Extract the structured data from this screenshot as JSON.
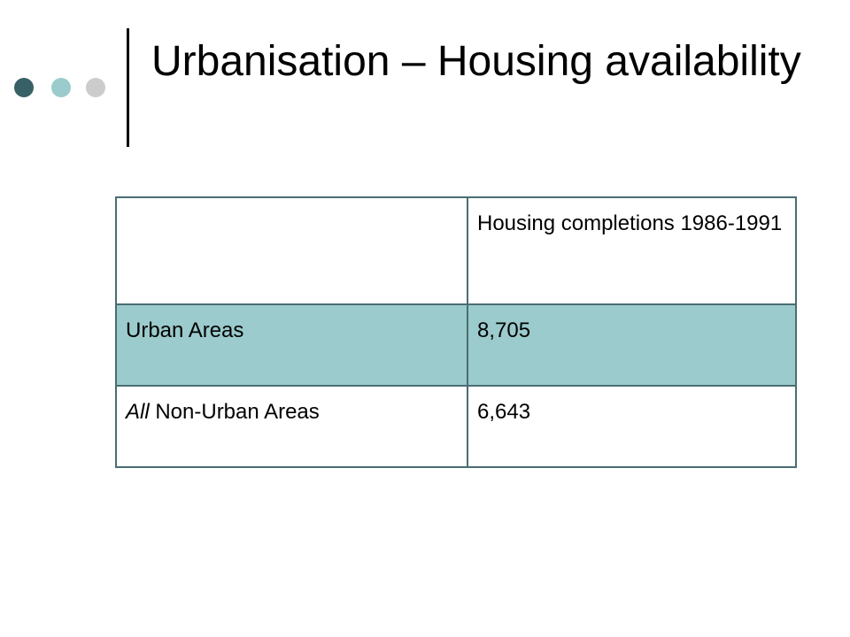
{
  "slide": {
    "title": "Urbanisation – Housing availability"
  },
  "table": {
    "header": {
      "col1": "",
      "col2": "Housing completions 1986-1991"
    },
    "rows": [
      {
        "label_italic": "",
        "label": "Urban Areas",
        "value": "8,705"
      },
      {
        "label_italic": "All",
        "label": " Non-Urban Areas",
        "value": "6,643"
      }
    ]
  },
  "colors": {
    "dot_dark": "#376166",
    "dot_light": "#9bcbcc",
    "dot_grey": "#cccccc",
    "highlight_row": "#9bcbcc",
    "table_border": "#4a6d73"
  }
}
